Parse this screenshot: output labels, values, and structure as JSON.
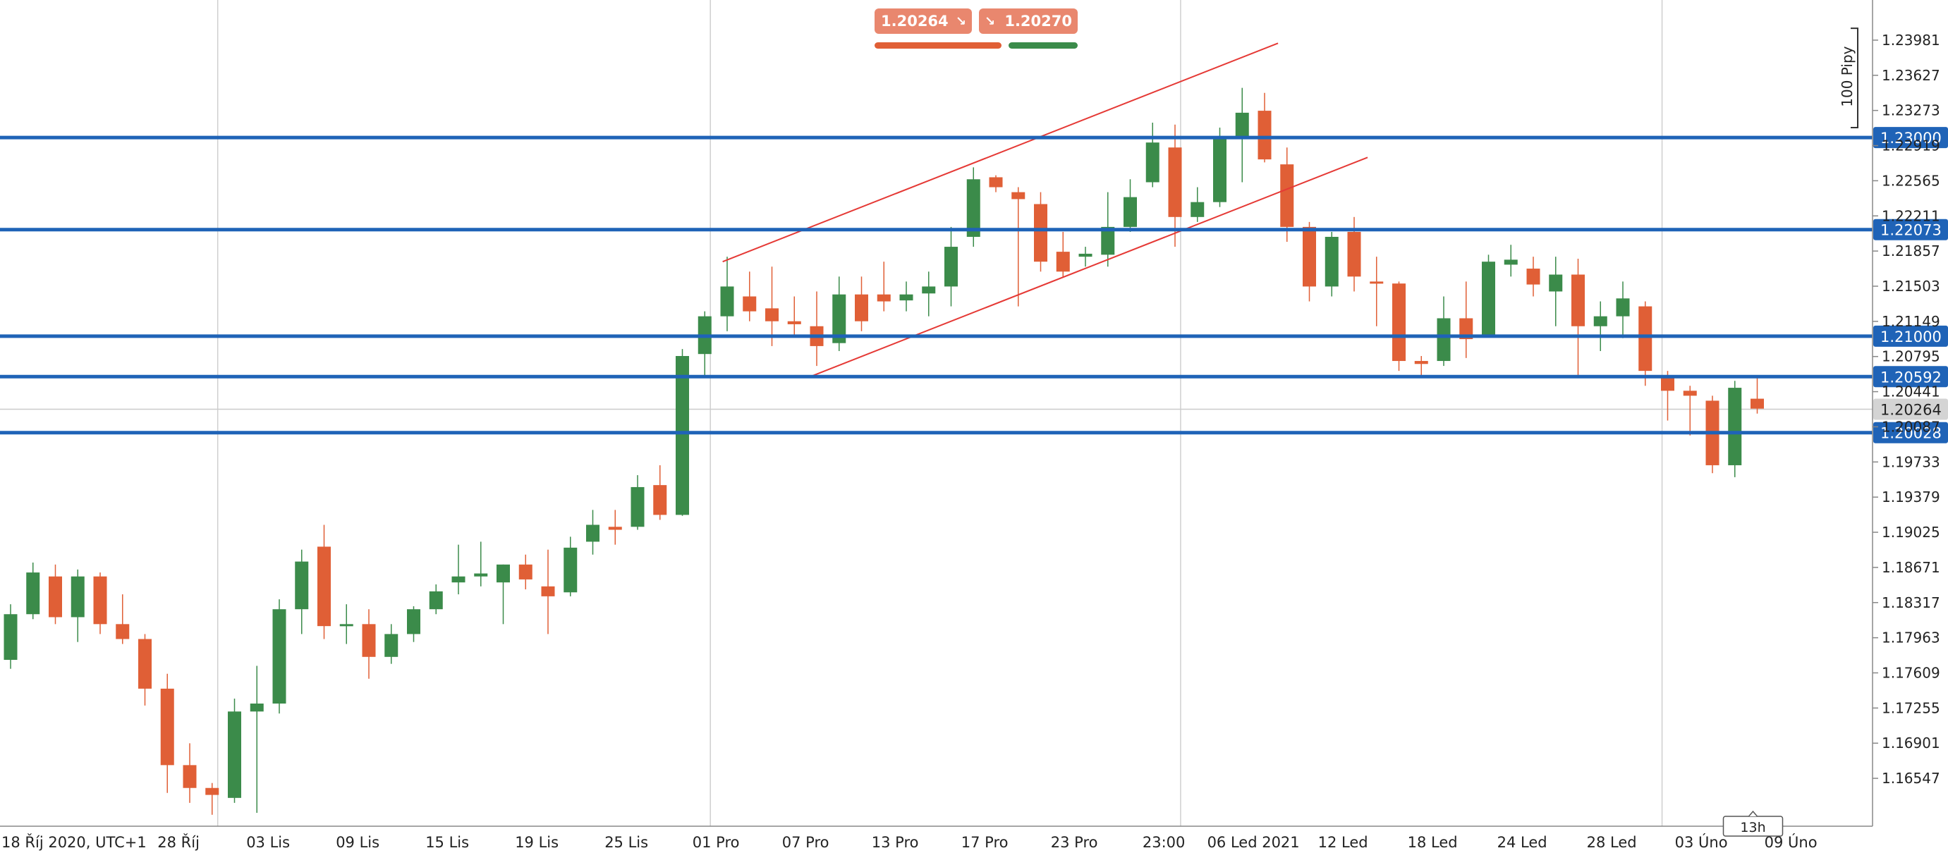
{
  "quote": {
    "bid": "1.20264",
    "ask": "1.20270",
    "bid_arrow": "↘",
    "ask_arrow": "↘",
    "bid_color": "#e05f36",
    "ask_color": "#3b8b4a"
  },
  "chart_data": {
    "type": "candlestick",
    "timezone_label": "UTC+1",
    "y_range": [
      1.1615,
      1.243
    ],
    "y_ticks": [
      1.23981,
      1.23627,
      1.23273,
      1.22919,
      1.22565,
      1.22211,
      1.21857,
      1.21503,
      1.21149,
      1.20795,
      1.20441,
      1.20087,
      1.19733,
      1.19379,
      1.19025,
      1.18671,
      1.18317,
      1.17963,
      1.17609,
      1.17255,
      1.16901,
      1.16547
    ],
    "x_labels": [
      {
        "label": "18 Říj 2020, UTC+1",
        "i": 0
      },
      {
        "label": "28 Říj",
        "i": 7.5
      },
      {
        "label": "03 Lis",
        "i": 11.5
      },
      {
        "label": "09 Lis",
        "i": 15.5
      },
      {
        "label": "15 Lis",
        "i": 19.5
      },
      {
        "label": "19 Lis",
        "i": 23.5
      },
      {
        "label": "25 Lis",
        "i": 27.5
      },
      {
        "label": "01 Pro",
        "i": 31.5
      },
      {
        "label": "07 Pro",
        "i": 35.5
      },
      {
        "label": "13 Pro",
        "i": 39.5
      },
      {
        "label": "17 Pro",
        "i": 43.5
      },
      {
        "label": "23 Pro",
        "i": 47.5
      },
      {
        "label": "23:00",
        "i": 51.5
      },
      {
        "label": "06 Led 2021",
        "i": 55.5
      },
      {
        "label": "12 Led",
        "i": 59.5
      },
      {
        "label": "18 Led",
        "i": 63.5
      },
      {
        "label": "24 Led",
        "i": 67.5
      },
      {
        "label": "28 Led",
        "i": 71.5
      },
      {
        "label": "03 Úno",
        "i": 75.5
      },
      {
        "label": "09 Úno",
        "i": 79.5
      }
    ],
    "separator_indices": [
      9.25,
      31.25,
      52.25,
      73.75
    ],
    "candles": [
      {
        "o": 1.1774,
        "h": 1.183,
        "l": 1.1765,
        "c": 1.182
      },
      {
        "o": 1.182,
        "h": 1.1872,
        "l": 1.1815,
        "c": 1.1862
      },
      {
        "o": 1.1858,
        "h": 1.187,
        "l": 1.181,
        "c": 1.1817
      },
      {
        "o": 1.1817,
        "h": 1.1865,
        "l": 1.1792,
        "c": 1.1858
      },
      {
        "o": 1.1858,
        "h": 1.1862,
        "l": 1.18,
        "c": 1.181
      },
      {
        "o": 1.181,
        "h": 1.184,
        "l": 1.179,
        "c": 1.1795
      },
      {
        "o": 1.1795,
        "h": 1.18,
        "l": 1.1728,
        "c": 1.1745
      },
      {
        "o": 1.1745,
        "h": 1.176,
        "l": 1.164,
        "c": 1.1668
      },
      {
        "o": 1.1668,
        "h": 1.169,
        "l": 1.163,
        "c": 1.1645
      },
      {
        "o": 1.1645,
        "h": 1.165,
        "l": 1.1618,
        "c": 1.1638
      },
      {
        "o": 1.1635,
        "h": 1.1735,
        "l": 1.163,
        "c": 1.1722
      },
      {
        "o": 1.1722,
        "h": 1.1768,
        "l": 1.162,
        "c": 1.173
      },
      {
        "o": 1.173,
        "h": 1.1835,
        "l": 1.172,
        "c": 1.1825
      },
      {
        "o": 1.1825,
        "h": 1.1885,
        "l": 1.18,
        "c": 1.1873
      },
      {
        "o": 1.1888,
        "h": 1.191,
        "l": 1.1795,
        "c": 1.1808
      },
      {
        "o": 1.1808,
        "h": 1.183,
        "l": 1.179,
        "c": 1.181
      },
      {
        "o": 1.181,
        "h": 1.1825,
        "l": 1.1755,
        "c": 1.1777
      },
      {
        "o": 1.1777,
        "h": 1.181,
        "l": 1.177,
        "c": 1.18
      },
      {
        "o": 1.18,
        "h": 1.1828,
        "l": 1.1792,
        "c": 1.1825
      },
      {
        "o": 1.1825,
        "h": 1.185,
        "l": 1.182,
        "c": 1.1843
      },
      {
        "o": 1.1852,
        "h": 1.189,
        "l": 1.184,
        "c": 1.1858
      },
      {
        "o": 1.1858,
        "h": 1.1893,
        "l": 1.1848,
        "c": 1.1861
      },
      {
        "o": 1.1852,
        "h": 1.187,
        "l": 1.181,
        "c": 1.187
      },
      {
        "o": 1.187,
        "h": 1.188,
        "l": 1.1845,
        "c": 1.1855
      },
      {
        "o": 1.1848,
        "h": 1.1885,
        "l": 1.18,
        "c": 1.1838
      },
      {
        "o": 1.1842,
        "h": 1.1898,
        "l": 1.1838,
        "c": 1.1887
      },
      {
        "o": 1.1893,
        "h": 1.1925,
        "l": 1.188,
        "c": 1.191
      },
      {
        "o": 1.1908,
        "h": 1.1925,
        "l": 1.189,
        "c": 1.1905
      },
      {
        "o": 1.1908,
        "h": 1.196,
        "l": 1.1905,
        "c": 1.1948
      },
      {
        "o": 1.195,
        "h": 1.197,
        "l": 1.1915,
        "c": 1.192
      },
      {
        "o": 1.192,
        "h": 1.2087,
        "l": 1.1919,
        "c": 1.208
      },
      {
        "o": 1.2082,
        "h": 1.2125,
        "l": 1.206,
        "c": 1.212
      },
      {
        "o": 1.212,
        "h": 1.218,
        "l": 1.2105,
        "c": 1.215
      },
      {
        "o": 1.214,
        "h": 1.2165,
        "l": 1.2115,
        "c": 1.2125
      },
      {
        "o": 1.2128,
        "h": 1.217,
        "l": 1.209,
        "c": 1.2115
      },
      {
        "o": 1.2115,
        "h": 1.214,
        "l": 1.21,
        "c": 1.2112
      },
      {
        "o": 1.211,
        "h": 1.2145,
        "l": 1.207,
        "c": 1.209
      },
      {
        "o": 1.2093,
        "h": 1.216,
        "l": 1.2085,
        "c": 1.2142
      },
      {
        "o": 1.2142,
        "h": 1.216,
        "l": 1.2105,
        "c": 1.2115
      },
      {
        "o": 1.2142,
        "h": 1.2175,
        "l": 1.2125,
        "c": 1.2135
      },
      {
        "o": 1.2136,
        "h": 1.2155,
        "l": 1.2125,
        "c": 1.2142
      },
      {
        "o": 1.2143,
        "h": 1.2165,
        "l": 1.212,
        "c": 1.215
      },
      {
        "o": 1.215,
        "h": 1.221,
        "l": 1.213,
        "c": 1.219
      },
      {
        "o": 1.22,
        "h": 1.227,
        "l": 1.219,
        "c": 1.2258
      },
      {
        "o": 1.226,
        "h": 1.2262,
        "l": 1.2245,
        "c": 1.225
      },
      {
        "o": 1.2245,
        "h": 1.225,
        "l": 1.213,
        "c": 1.2238
      },
      {
        "o": 1.2233,
        "h": 1.2245,
        "l": 1.2165,
        "c": 1.2175
      },
      {
        "o": 1.2185,
        "h": 1.2205,
        "l": 1.216,
        "c": 1.2165
      },
      {
        "o": 1.218,
        "h": 1.219,
        "l": 1.217,
        "c": 1.2183
      },
      {
        "o": 1.2182,
        "h": 1.2245,
        "l": 1.217,
        "c": 1.221
      },
      {
        "o": 1.221,
        "h": 1.2258,
        "l": 1.2205,
        "c": 1.224
      },
      {
        "o": 1.2255,
        "h": 1.2315,
        "l": 1.225,
        "c": 1.2295
      },
      {
        "o": 1.229,
        "h": 1.2313,
        "l": 1.219,
        "c": 1.222
      },
      {
        "o": 1.222,
        "h": 1.225,
        "l": 1.2215,
        "c": 1.2235
      },
      {
        "o": 1.2235,
        "h": 1.231,
        "l": 1.223,
        "c": 1.23
      },
      {
        "o": 1.23,
        "h": 1.235,
        "l": 1.2255,
        "c": 1.2325
      },
      {
        "o": 1.2327,
        "h": 1.2345,
        "l": 1.2275,
        "c": 1.2278
      },
      {
        "o": 1.2273,
        "h": 1.229,
        "l": 1.2195,
        "c": 1.221
      },
      {
        "o": 1.221,
        "h": 1.2215,
        "l": 1.2135,
        "c": 1.215
      },
      {
        "o": 1.215,
        "h": 1.2205,
        "l": 1.214,
        "c": 1.22
      },
      {
        "o": 1.2205,
        "h": 1.222,
        "l": 1.2145,
        "c": 1.216
      },
      {
        "o": 1.2155,
        "h": 1.218,
        "l": 1.211,
        "c": 1.2153
      },
      {
        "o": 1.2153,
        "h": 1.2155,
        "l": 1.2065,
        "c": 1.2075
      },
      {
        "o": 1.2075,
        "h": 1.208,
        "l": 1.2058,
        "c": 1.2072
      },
      {
        "o": 1.2075,
        "h": 1.214,
        "l": 1.207,
        "c": 1.2118
      },
      {
        "o": 1.2118,
        "h": 1.2155,
        "l": 1.2078,
        "c": 1.2097
      },
      {
        "o": 1.21,
        "h": 1.2182,
        "l": 1.21,
        "c": 1.2175
      },
      {
        "o": 1.2172,
        "h": 1.2192,
        "l": 1.216,
        "c": 1.2177
      },
      {
        "o": 1.2168,
        "h": 1.218,
        "l": 1.214,
        "c": 1.2152
      },
      {
        "o": 1.2145,
        "h": 1.218,
        "l": 1.211,
        "c": 1.2162
      },
      {
        "o": 1.2162,
        "h": 1.2178,
        "l": 1.206,
        "c": 1.211
      },
      {
        "o": 1.211,
        "h": 1.2135,
        "l": 1.2085,
        "c": 1.212
      },
      {
        "o": 1.212,
        "h": 1.2155,
        "l": 1.2098,
        "c": 1.2138
      },
      {
        "o": 1.213,
        "h": 1.2135,
        "l": 1.205,
        "c": 1.2065
      },
      {
        "o": 1.206,
        "h": 1.2065,
        "l": 1.2015,
        "c": 1.2045
      },
      {
        "o": 1.2045,
        "h": 1.205,
        "l": 1.2,
        "c": 1.204
      },
      {
        "o": 1.2035,
        "h": 1.204,
        "l": 1.1962,
        "c": 1.197
      },
      {
        "o": 1.197,
        "h": 1.2055,
        "l": 1.1958,
        "c": 1.2048
      },
      {
        "o": 1.2037,
        "h": 1.2058,
        "l": 1.2022,
        "c": 1.2027
      }
    ],
    "horizontal_levels": [
      {
        "value": 1.23,
        "label": "1.23000",
        "color": "#1f63b7"
      },
      {
        "value": 1.22073,
        "label": "1.22073",
        "color": "#1f63b7"
      },
      {
        "value": 1.21,
        "label": "1.21000",
        "color": "#1f63b7"
      },
      {
        "value": 1.20592,
        "label": "1.20592",
        "color": "#1f63b7"
      },
      {
        "value": 1.20028,
        "label": "1.20028",
        "color": "#1f63b7"
      }
    ],
    "current_price": {
      "value": 1.20264,
      "label": "1.20264"
    },
    "channel_lines": [
      {
        "from": {
          "i": 31.8,
          "v": 1.2175
        },
        "to": {
          "i": 56.6,
          "v": 1.2395
        }
      },
      {
        "from": {
          "i": 35.8,
          "v": 1.206
        },
        "to": {
          "i": 60.6,
          "v": 1.228
        }
      }
    ],
    "countdown_label": "13h",
    "range_marker_label": "100 Pipy",
    "range_marker_span": [
      1.231,
      1.241
    ],
    "colors": {
      "bull": "#3b8b4a",
      "bear": "#e05f36",
      "grid": "#cfcfcf",
      "axis_text": "#222222",
      "channel": "#e53935"
    }
  }
}
